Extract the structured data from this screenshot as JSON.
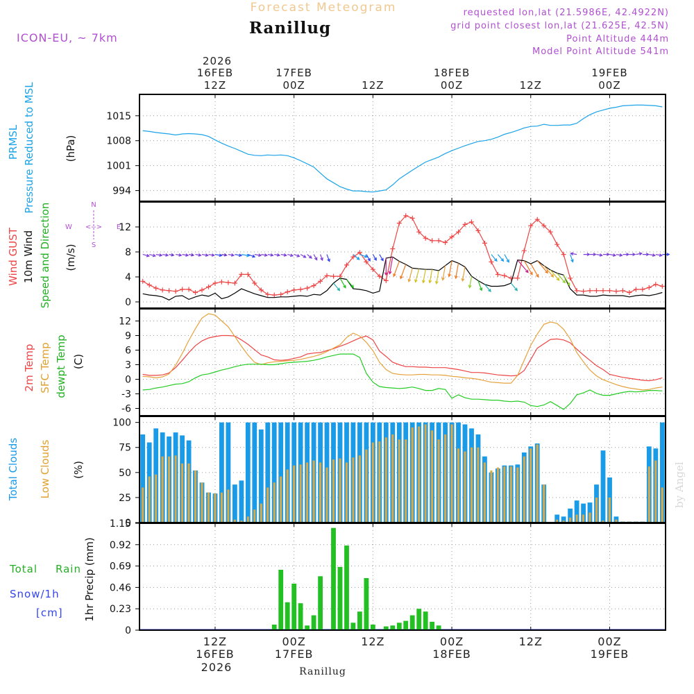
{
  "header": {
    "app_title": "Forecast Meteogram",
    "location": "Ranillug",
    "model": "ICON-EU, ~ 7km",
    "requested": "requested lon,lat (21.5986E, 42.4922N)",
    "grid_point": "grid point closest lon,lat (21.625E, 42.5N)",
    "point_altitude": "Point Altitude 444m",
    "model_altitude": "Model Point Altitude 541m",
    "footer_location": "Ranillug",
    "credit": "by Angel"
  },
  "time_axis": {
    "top_year": "2026",
    "ticks": [
      {
        "t": 12,
        "hour": "12Z",
        "date": "16FEB"
      },
      {
        "t": 24,
        "hour": "00Z",
        "date": "17FEB"
      },
      {
        "t": 36,
        "hour": "12Z",
        "date": ""
      },
      {
        "t": 48,
        "hour": "00Z",
        "date": "18FEB"
      },
      {
        "t": 60,
        "hour": "12Z",
        "date": ""
      },
      {
        "t": 72,
        "hour": "00Z",
        "date": "19FEB"
      }
    ],
    "bottom_year": "2026"
  },
  "colors": {
    "pressure": "#1aa3e8",
    "gust": "#ee4444",
    "wind": "#000000",
    "temp": "#ee4444",
    "sfc": "#e6a23c",
    "dewpt": "#22cc22",
    "total_clouds": "#1a9be8",
    "low_clouds": "#e0a840",
    "rain": "#22c022",
    "snow": "#3344ee",
    "purple": "#b04fd0",
    "axis": "#000000",
    "grid": "#999999"
  },
  "panel_labels": {
    "pressure": [
      "PRMSL",
      "Pressure Reduced to MSL",
      "(hPa)"
    ],
    "wind": [
      "Wind GUST",
      "10m Wind",
      "Speed and Direction",
      "(m/s)"
    ],
    "compass": {
      "n": "N",
      "s": "S",
      "w": "W",
      "e": "E",
      "arrows": "<-->"
    },
    "temp": [
      "2m Temp",
      "SFC Temp",
      "dewpt Temp",
      "(C)"
    ],
    "clouds": [
      "Total Clouds",
      "Low Clouds",
      "(%)"
    ],
    "precip": [
      "Total",
      "Rain",
      "Snow/1h",
      "[cm]",
      "1hr Precip (mm)"
    ]
  },
  "chart_data": [
    {
      "type": "line",
      "name": "pressure",
      "ylabel": "(hPa)",
      "ylim": [
        991,
        1021
      ],
      "yticks": [
        994,
        1001,
        1008,
        1015
      ],
      "t_start": 1,
      "t_step": 1,
      "series": [
        {
          "name": "PRMSL",
          "values": [
            1010.8,
            1010.6,
            1010.3,
            1010.1,
            1009.9,
            1009.6,
            1009.9,
            1010.0,
            1009.9,
            1009.7,
            1009.2,
            1008.2,
            1007.3,
            1006.5,
            1005.8,
            1005.0,
            1004.2,
            1003.9,
            1003.8,
            1004.0,
            1003.9,
            1004.0,
            1003.8,
            1003.2,
            1002.4,
            1001.5,
            1000.6,
            998.9,
            997.3,
            996.2,
            995.1,
            994.4,
            993.9,
            993.9,
            993.7,
            993.6,
            993.9,
            994.2,
            995.6,
            997.3,
            998.5,
            999.7,
            1000.9,
            1002.0,
            1002.7,
            1003.4,
            1004.4,
            1005.2,
            1005.9,
            1006.6,
            1007.2,
            1007.8,
            1008.0,
            1008.4,
            1009.0,
            1009.8,
            1010.3,
            1010.9,
            1011.6,
            1012.0,
            1012.1,
            1012.6,
            1012.3,
            1012.3,
            1012.4,
            1012.4,
            1012.9,
            1014.2,
            1015.3,
            1016.1,
            1016.6,
            1017.1,
            1017.4,
            1017.8,
            1017.9,
            1018.0,
            1018.0,
            1017.9,
            1017.8,
            1017.5
          ]
        }
      ]
    },
    {
      "type": "line",
      "name": "wind",
      "ylabel": "(m/s)",
      "ylim": [
        -1,
        16
      ],
      "yticks": [
        0,
        4,
        8,
        12
      ],
      "t_start": 1,
      "t_step": 1,
      "series": [
        {
          "name": "Wind GUST",
          "values": [
            3.3,
            2.7,
            2.2,
            1.9,
            1.8,
            1.7,
            2.0,
            2.0,
            1.5,
            1.9,
            2.4,
            3.0,
            3.2,
            3.1,
            3.0,
            4.4,
            4.4,
            3.0,
            1.9,
            1.2,
            1.1,
            1.2,
            1.6,
            1.9,
            2.0,
            2.2,
            2.6,
            3.3,
            4.2,
            4.1,
            4.1,
            5.9,
            7.2,
            7.9,
            6.4,
            5.2,
            4.1,
            3.4,
            8.5,
            12.6,
            13.8,
            13.4,
            11.2,
            10.2,
            9.8,
            9.8,
            9.5,
            10.4,
            11.2,
            12.4,
            12.8,
            11.4,
            9.4,
            6.4,
            4.4,
            4.2,
            3.8,
            3.8,
            8.2,
            12.2,
            13.2,
            12.2,
            11.2,
            9.2,
            7.6,
            3.8,
            1.8,
            1.7,
            1.8,
            1.8,
            1.8,
            1.8,
            1.7,
            1.8,
            1.5,
            2.0,
            2.0,
            2.3,
            2.8,
            2.5
          ]
        },
        {
          "name": "10m Wind",
          "values": [
            1.3,
            1.1,
            1.0,
            0.8,
            0.3,
            0.9,
            1.0,
            0.4,
            0.8,
            1.1,
            0.9,
            1.4,
            0.5,
            0.8,
            1.4,
            2.1,
            1.7,
            1.3,
            1.0,
            0.7,
            0.7,
            0.8,
            0.8,
            0.9,
            1.0,
            0.9,
            1.2,
            1.1,
            1.8,
            3.0,
            3.8,
            3.6,
            2.1,
            2.0,
            1.8,
            1.4,
            1.7,
            7.0,
            7.2,
            6.5,
            6.0,
            5.4,
            5.3,
            5.2,
            5.2,
            5.0,
            5.8,
            6.6,
            6.2,
            5.6,
            4.1,
            3.4,
            2.8,
            2.5,
            2.5,
            2.6,
            3.0,
            6.7,
            6.6,
            6.1,
            6.6,
            5.8,
            5.1,
            4.6,
            4.3,
            2.1,
            1.1,
            1.1,
            0.9,
            0.9,
            1.1,
            1.0,
            1.0,
            1.0,
            0.8,
            1.0,
            1.1,
            1.0,
            1.2,
            1.5
          ]
        }
      ],
      "wind_direction_from_deg": [
        285,
        285,
        280,
        280,
        280,
        280,
        280,
        280,
        280,
        280,
        280,
        280,
        280,
        280,
        280,
        280,
        290,
        280,
        280,
        280,
        280,
        280,
        285,
        290,
        300,
        310,
        330,
        340,
        340,
        320,
        330,
        320,
        310,
        290,
        330,
        330,
        330,
        0,
        10,
        20,
        20,
        15,
        15,
        10,
        10,
        10,
        10,
        10,
        10,
        10,
        10,
        340,
        320,
        320,
        320,
        330,
        320,
        320,
        330,
        330,
        320,
        320,
        320,
        320,
        330,
        340,
        100,
        270,
        270,
        280,
        270,
        280,
        280,
        270,
        270,
        260,
        270,
        280,
        280,
        270
      ]
    },
    {
      "type": "line",
      "name": "temperature",
      "ylabel": "(C)",
      "ylim": [
        -7.5,
        14.5
      ],
      "yticks": [
        -6,
        -3,
        0,
        3,
        6,
        9,
        12
      ],
      "t_start": 1,
      "t_step": 1,
      "series": [
        {
          "name": "2m Temp",
          "values": [
            1.0,
            0.8,
            0.8,
            0.9,
            1.3,
            2.4,
            3.9,
            5.5,
            6.9,
            7.9,
            8.5,
            8.8,
            9.0,
            9.0,
            8.9,
            8.1,
            7.2,
            6.1,
            5.0,
            4.6,
            4.0,
            3.9,
            4.0,
            4.3,
            4.6,
            5.2,
            5.4,
            5.5,
            5.9,
            6.3,
            6.8,
            7.3,
            7.9,
            8.5,
            8.9,
            8.1,
            5.8,
            4.7,
            3.5,
            3.0,
            2.6,
            2.6,
            2.5,
            2.5,
            2.4,
            2.4,
            2.4,
            2.2,
            2.0,
            1.7,
            1.4,
            1.4,
            1.3,
            1.1,
            0.9,
            0.8,
            0.7,
            0.8,
            1.8,
            4.1,
            6.4,
            7.3,
            8.2,
            8.3,
            8.1,
            7.5,
            6.2,
            5.0,
            3.9,
            2.8,
            2.0,
            1.0,
            0.7,
            0.4,
            0.2,
            0.0,
            -0.2,
            -0.3,
            -0.1,
            0.3
          ]
        },
        {
          "name": "SFC Temp",
          "values": [
            0.6,
            0.5,
            0.3,
            0.5,
            1.1,
            2.9,
            5.3,
            8.0,
            10.4,
            12.6,
            13.5,
            13.2,
            12.0,
            10.8,
            8.8,
            6.8,
            5.0,
            3.5,
            3.0,
            3.4,
            3.6,
            3.7,
            3.8,
            3.9,
            4.1,
            4.4,
            4.7,
            5.1,
            5.7,
            6.4,
            7.1,
            8.6,
            9.5,
            8.9,
            7.6,
            5.9,
            3.5,
            2.0,
            1.2,
            1.0,
            0.9,
            0.9,
            1.0,
            1.0,
            0.9,
            0.9,
            0.8,
            0.6,
            0.5,
            0.3,
            0.2,
            0.0,
            -0.3,
            -0.6,
            -0.7,
            -0.8,
            -0.8,
            0.8,
            3.9,
            7.0,
            9.3,
            11.3,
            11.8,
            11.5,
            10.3,
            8.3,
            5.5,
            3.6,
            1.9,
            0.7,
            -0.1,
            -0.6,
            -1.1,
            -1.5,
            -1.8,
            -2.0,
            -2.2,
            -2.1,
            -1.8,
            -1.6
          ]
        },
        {
          "name": "dewpt Temp",
          "values": [
            -2.2,
            -2.1,
            -1.8,
            -1.6,
            -1.3,
            -1.0,
            -0.9,
            -0.5,
            0.3,
            0.9,
            1.1,
            1.5,
            1.9,
            2.2,
            2.6,
            2.9,
            3.1,
            3.1,
            3.1,
            3.0,
            3.0,
            3.2,
            3.4,
            3.5,
            3.6,
            3.7,
            3.9,
            4.2,
            4.6,
            4.9,
            5.2,
            5.2,
            5.2,
            4.5,
            1.2,
            -0.6,
            -1.5,
            -1.7,
            -1.8,
            -1.9,
            -1.8,
            -1.6,
            -1.9,
            -2.3,
            -2.3,
            -1.9,
            -2.1,
            -3.9,
            -3.2,
            -3.8,
            -4.1,
            -4.1,
            -4.2,
            -4.3,
            -4.3,
            -4.5,
            -4.6,
            -4.5,
            -4.7,
            -5.4,
            -5.6,
            -5.3,
            -4.6,
            -5.4,
            -6.2,
            -5.0,
            -3.2,
            -2.8,
            -2.2,
            -2.9,
            -3.3,
            -3.3,
            -3.0,
            -2.7,
            -2.5,
            -2.6,
            -2.5,
            -2.3,
            -2.3,
            -2.4
          ]
        }
      ]
    },
    {
      "type": "bar",
      "name": "clouds",
      "ylabel": "(%)",
      "ylim": [
        0,
        106
      ],
      "yticks": [
        0,
        25,
        50,
        75,
        100
      ],
      "t_start": 1,
      "t_step": 1,
      "series": [
        {
          "name": "Total Clouds",
          "values": [
            88,
            80,
            94,
            90,
            86,
            90,
            87,
            82,
            52,
            40,
            30,
            29,
            100,
            100,
            38,
            42,
            100,
            100,
            93,
            100,
            100,
            100,
            100,
            100,
            100,
            100,
            100,
            100,
            100,
            100,
            100,
            100,
            100,
            100,
            100,
            100,
            100,
            100,
            100,
            100,
            100,
            100,
            100,
            100,
            100,
            100,
            100,
            100,
            100,
            98,
            94,
            88,
            66,
            50,
            54,
            57,
            57,
            58,
            70,
            76,
            79,
            38,
            0,
            8,
            6,
            14,
            22,
            19,
            20,
            38,
            72,
            45,
            6,
            1,
            1,
            1,
            1,
            76,
            74,
            100
          ]
        },
        {
          "name": "Low Clouds",
          "values": [
            35,
            46,
            48,
            66,
            66,
            67,
            59,
            59,
            52,
            40,
            30,
            29,
            30,
            33,
            3,
            2,
            6,
            13,
            19,
            35,
            40,
            46,
            53,
            57,
            58,
            60,
            62,
            60,
            55,
            63,
            64,
            60,
            65,
            67,
            73,
            80,
            81,
            85,
            88,
            83,
            83,
            95,
            96,
            98,
            92,
            83,
            88,
            98,
            74,
            71,
            75,
            75,
            60,
            52,
            55,
            56,
            56,
            55,
            66,
            74,
            78,
            38,
            0,
            3,
            2,
            5,
            8,
            8,
            10,
            25,
            2,
            25,
            3,
            1,
            1,
            1,
            1,
            56,
            62,
            35
          ]
        }
      ]
    },
    {
      "type": "bar",
      "name": "precipitation",
      "ylabel": "1hr Precip (mm)",
      "ylim": [
        0,
        1.15
      ],
      "yticks": [
        0,
        0.23,
        0.46,
        0.69,
        0.92,
        1.15
      ],
      "ytick_labels": [
        "0",
        "0.23",
        "0.46",
        "0.69",
        "0.92",
        "1.15"
      ],
      "t_start": 1,
      "t_step": 1,
      "series": [
        {
          "name": "Total Rain",
          "values": [
            0,
            0,
            0,
            0,
            0,
            0,
            0,
            0,
            0,
            0,
            0,
            0,
            0,
            0,
            0,
            0,
            0,
            0,
            0,
            0,
            0.06,
            0.65,
            0.3,
            0.5,
            0.29,
            0.05,
            0.16,
            0.58,
            0,
            1.1,
            0.68,
            0.91,
            0.08,
            0.2,
            0.56,
            0.06,
            0,
            0.04,
            0.05,
            0.08,
            0.1,
            0.16,
            0.23,
            0.2,
            0.09,
            0.05,
            0,
            0,
            0,
            0,
            0,
            0,
            0,
            0,
            0,
            0,
            0,
            0,
            0,
            0,
            0,
            0,
            0,
            0,
            0,
            0,
            0,
            0,
            0,
            0,
            0,
            0,
            0,
            0,
            0,
            0,
            0,
            0,
            0,
            0
          ]
        },
        {
          "name": "Snow/1h",
          "values": [
            0,
            0,
            0,
            0,
            0,
            0,
            0,
            0,
            0,
            0,
            0,
            0,
            0,
            0,
            0,
            0,
            0,
            0,
            0,
            0,
            0,
            0,
            0,
            0,
            0,
            0,
            0,
            0,
            0,
            0,
            0,
            0,
            0,
            0,
            0,
            0,
            0,
            0,
            0,
            0,
            0,
            0,
            0,
            0,
            0,
            0,
            0,
            0,
            0,
            0,
            0,
            0,
            0,
            0,
            0,
            0,
            0,
            0,
            0,
            0,
            0,
            0,
            0,
            0,
            0,
            0,
            0,
            0,
            0,
            0,
            0,
            0,
            0,
            0,
            0,
            0,
            0,
            0,
            0,
            0
          ]
        }
      ]
    }
  ]
}
